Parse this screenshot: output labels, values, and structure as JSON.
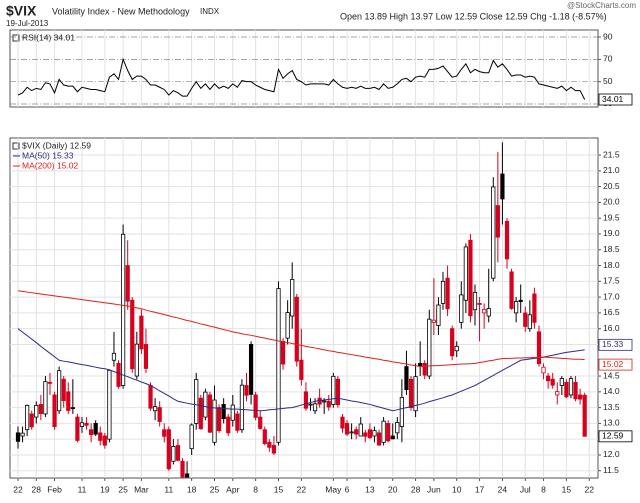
{
  "header": {
    "symbol": "$VIX",
    "name": "Volatility Index - New Methodology",
    "exchange": "INDX",
    "date": "19-Jul-2013",
    "quote": "Open 13.89  High 13.97  Low 12.59  Close 12.59  Chg -1.18 (-8.57%)",
    "credit": "@StockCharts.com"
  },
  "chart_data": [
    {
      "type": "line",
      "name": "RSI(14) 34.01",
      "color": "#000000",
      "end_label": "34.01",
      "ylim": [
        27.3,
        96.3
      ],
      "yticks": [
        90,
        70,
        50,
        30
      ],
      "grid": true,
      "values": [
        38,
        40,
        45,
        42,
        44,
        43,
        49,
        48,
        40,
        52,
        47,
        46,
        46,
        41,
        45,
        44,
        43,
        43,
        42,
        41,
        54,
        57,
        52,
        70,
        60,
        52,
        55,
        55,
        52,
        47,
        47,
        45,
        43,
        38,
        42,
        40,
        37,
        37,
        44,
        50,
        44,
        48,
        43,
        48,
        44,
        46,
        44,
        48,
        45,
        51,
        50,
        50,
        47,
        45,
        43,
        42,
        41,
        61,
        53,
        57,
        60,
        52,
        50,
        47,
        48,
        48,
        48,
        48,
        47,
        52,
        48,
        45,
        44,
        45,
        44,
        46,
        44,
        44,
        45,
        43,
        48,
        44,
        45,
        48,
        52,
        53,
        50,
        54,
        55,
        54,
        61,
        61,
        62,
        64,
        59,
        54,
        55,
        61,
        66,
        58,
        61,
        59,
        58,
        58,
        69,
        63,
        66,
        61,
        55,
        56,
        56,
        54,
        55,
        54,
        48,
        47,
        46,
        45,
        44,
        46,
        42,
        45,
        42,
        42,
        34.01,
        null
      ]
    },
    {
      "type": "candlestick",
      "name": "$VIX (Daily) 12.59",
      "end_label": "12.59",
      "up_color": "#000000",
      "down_color": "#d8001c",
      "ylim": [
        11.27,
        22.04
      ],
      "grid": true,
      "yticks": [
        11.5,
        {
          "value": 12,
          "label": "12.0"
        },
        12.5,
        {
          "value": 13,
          "label": "13.0"
        },
        13.5,
        {
          "value": 14,
          "label": "14.0"
        },
        14.5,
        15.5,
        {
          "value": 16,
          "label": "16.0"
        },
        16.5,
        {
          "value": 17,
          "label": "17.0"
        },
        17.5,
        {
          "value": 18,
          "label": "18.0"
        },
        18.5,
        {
          "value": 19,
          "label": "19.0"
        },
        19.5,
        {
          "value": 20,
          "label": "20.0"
        },
        20.5,
        {
          "value": 21,
          "label": "21.0"
        },
        21.5
      ],
      "categories": [
        "22",
        null,
        null,
        null,
        "28",
        null,
        null,
        null,
        "Feb",
        null,
        null,
        null,
        null,
        null,
        "11",
        null,
        null,
        null,
        null,
        "19",
        null,
        null,
        null,
        "25",
        null,
        null,
        null,
        "Mar",
        null,
        null,
        null,
        null,
        null,
        "11",
        null,
        null,
        null,
        null,
        "18",
        null,
        null,
        null,
        null,
        "25",
        null,
        null,
        null,
        "Apr",
        null,
        null,
        null,
        null,
        "8",
        null,
        null,
        null,
        null,
        "15",
        null,
        null,
        null,
        null,
        "22",
        null,
        null,
        null,
        null,
        null,
        null,
        "May",
        null,
        null,
        "6",
        null,
        null,
        null,
        null,
        "13",
        null,
        null,
        null,
        null,
        "20",
        null,
        null,
        null,
        null,
        "28",
        null,
        null,
        null,
        "Jun",
        null,
        null,
        null,
        null,
        "10",
        null,
        null,
        null,
        null,
        "17",
        null,
        null,
        null,
        null,
        "24",
        null,
        null,
        null,
        null,
        "Jul",
        null,
        null,
        null,
        "8",
        null,
        null,
        null,
        null,
        "15",
        null,
        null,
        null,
        null,
        "22"
      ],
      "open": [
        12.7,
        12.6,
        12.8,
        13.3,
        13.2,
        13.6,
        13.3,
        14.3,
        13.9,
        13.4,
        14.4,
        14.0,
        13.5,
        13.2,
        12.9,
        13.0,
        12.8,
        13.0,
        12.7,
        12.6,
        12.5,
        15.0,
        14.9,
        14.2,
        18.0,
        16.9,
        14.5,
        16.4,
        15.5,
        14.2,
        13.4,
        13.5,
        12.8,
        12.8,
        11.8,
        12.3,
        11.8,
        11.4,
        12.2,
        13.0,
        13.8,
        13.2,
        13.9,
        12.4,
        13.5,
        13.6,
        13.2,
        13.1,
        13.3,
        12.8,
        14.2,
        15.5,
        13.9,
        13.2,
        12.8,
        12.4,
        12.3,
        12.4,
        15.6,
        15.7,
        16.4,
        17.0,
        15.0,
        14.0,
        13.6,
        13.4,
        13.8,
        13.7,
        13.7,
        13.6,
        14.4,
        13.2,
        13.0,
        12.7,
        12.8,
        12.6,
        12.7,
        12.8,
        12.6,
        12.7,
        12.4,
        13.0,
        12.6,
        12.7,
        12.9,
        14.8,
        14.4,
        13.4,
        14.9,
        14.9,
        14.5,
        16.2,
        16.1,
        16.8,
        17.6,
        16.0,
        15.3,
        16.2,
        16.9,
        18.8,
        16.6,
        16.8,
        16.5,
        16.4,
        17.6,
        19.9,
        20.9,
        19.4,
        17.8,
        16.5,
        16.9,
        16.5,
        16.0,
        17.1,
        15.9,
        14.6,
        14.5,
        14.4,
        13.9,
        14.2,
        14.3,
        13.9,
        14.3,
        13.9,
        13.89,
        null
      ],
      "high": [
        12.9,
        12.9,
        13.6,
        13.4,
        13.7,
        13.9,
        14.5,
        14.6,
        14.0,
        14.8,
        14.5,
        14.3,
        14.4,
        13.3,
        13.2,
        13.2,
        13.0,
        13.1,
        12.9,
        12.7,
        14.7,
        15.9,
        15.0,
        19.3,
        18.8,
        17.0,
        15.9,
        16.6,
        16.0,
        14.3,
        13.8,
        13.7,
        13.0,
        12.9,
        12.5,
        12.5,
        11.9,
        11.8,
        13.0,
        14.6,
        13.9,
        14.1,
        14.0,
        14.2,
        13.6,
        13.8,
        13.3,
        13.9,
        13.4,
        14.4,
        14.6,
        15.6,
        14.0,
        13.4,
        12.9,
        12.5,
        12.6,
        17.5,
        15.7,
        16.9,
        18.1,
        17.1,
        16.0,
        14.3,
        13.8,
        13.8,
        14.1,
        13.8,
        13.9,
        14.6,
        14.5,
        13.3,
        13.1,
        13.0,
        12.9,
        13.2,
        12.8,
        13.0,
        12.9,
        12.8,
        13.2,
        13.1,
        13.0,
        13.2,
        14.4,
        15.3,
        14.5,
        14.9,
        15.6,
        15.0,
        16.6,
        17.6,
        17.0,
        17.8,
        18.0,
        16.1,
        15.6,
        17.5,
        18.7,
        19.0,
        17.4,
        17.0,
        16.8,
        17.9,
        20.8,
        21.6,
        21.9,
        19.5,
        17.9,
        17.0,
        17.4,
        16.7,
        16.9,
        17.3,
        16.1,
        14.9,
        14.6,
        14.6,
        14.3,
        14.5,
        14.4,
        14.5,
        14.5,
        14.1,
        13.97,
        null
      ],
      "low": [
        12.2,
        12.4,
        12.6,
        12.8,
        13.0,
        13.1,
        13.2,
        13.9,
        12.8,
        13.3,
        13.5,
        13.3,
        13.3,
        12.4,
        12.7,
        12.8,
        12.4,
        12.6,
        12.3,
        12.2,
        12.4,
        14.8,
        14.1,
        14.1,
        16.6,
        14.6,
        14.4,
        15.2,
        14.6,
        13.4,
        13.1,
        12.9,
        12.4,
        11.5,
        11.7,
        11.8,
        11.3,
        11.3,
        12.0,
        12.8,
        12.8,
        13.1,
        12.7,
        12.3,
        12.7,
        13.0,
        12.6,
        12.9,
        12.7,
        12.7,
        13.7,
        13.6,
        13.1,
        12.8,
        12.3,
        12.1,
        12.0,
        12.3,
        14.7,
        15.5,
        16.0,
        14.8,
        14.2,
        13.4,
        13.4,
        13.3,
        13.5,
        13.3,
        13.4,
        13.5,
        13.5,
        12.7,
        12.6,
        12.5,
        12.5,
        12.6,
        12.4,
        12.5,
        12.4,
        12.3,
        12.3,
        12.4,
        12.5,
        12.5,
        12.4,
        13.9,
        13.4,
        13.2,
        14.5,
        14.4,
        14.4,
        15.8,
        15.8,
        16.6,
        16.4,
        15.0,
        15.1,
        16.0,
        16.5,
        16.2,
        16.1,
        15.6,
        16.0,
        16.2,
        17.5,
        18.1,
        19.3,
        17.9,
        16.6,
        16.2,
        16.5,
        15.9,
        15.9,
        16.0,
        14.8,
        14.4,
        14.1,
        14.1,
        13.6,
        13.9,
        13.8,
        13.8,
        13.7,
        13.6,
        12.59,
        null
      ],
      "close": [
        12.43,
        12.69,
        13.57,
        12.89,
        13.57,
        13.31,
        14.32,
        14.28,
        12.9,
        14.67,
        13.72,
        13.41,
        13.5,
        12.46,
        13.02,
        12.94,
        12.64,
        12.66,
        12.46,
        12.31,
        14.68,
        15.22,
        14.17,
        18.99,
        16.87,
        14.73,
        15.51,
        15.36,
        14.74,
        13.48,
        13.53,
        13.06,
        12.59,
        11.56,
        12.27,
        11.83,
        11.3,
        11.3,
        12.95,
        14.39,
        12.83,
        13.99,
        12.72,
        13.74,
        12.77,
        13.15,
        12.7,
        13.58,
        12.78,
        14.21,
        13.89,
        13.92,
        13.19,
        12.84,
        12.36,
        12.24,
        12.06,
        17.27,
        14.88,
        16.51,
        17.56,
        14.97,
        14.39,
        13.48,
        13.61,
        13.62,
        13.61,
        13.71,
        13.52,
        14.49,
        13.59,
        12.85,
        12.66,
        12.73,
        12.66,
        12.98,
        12.59,
        12.55,
        12.77,
        12.31,
        13.07,
        12.45,
        12.51,
        13.03,
        13.82,
        14.07,
        13.5,
        14.48,
        14.83,
        14.53,
        16.3,
        16.27,
        16.75,
        17.5,
        16.63,
        15.14,
        15.44,
        17.07,
        18.59,
        16.41,
        17.15,
        16.8,
        16.61,
        16.64,
        20.49,
        18.9,
        20.11,
        18.21,
        16.64,
        16.86,
        16.86,
        16.07,
        16.44,
        16.2,
        14.89,
        14.78,
        14.35,
        14.21,
        14.01,
        14.42,
        13.84,
        14.42,
        13.78,
        13.77,
        12.59,
        null
      ],
      "series": [
        {
          "name": "MA(50) 15.33",
          "color": "#2b2b88",
          "end_label": "15.33",
          "values": [
            16.0,
            15.89,
            15.78,
            15.67,
            15.56,
            15.44,
            15.33,
            15.22,
            15.11,
            15.0,
            14.97,
            14.95,
            14.92,
            14.89,
            14.86,
            14.84,
            14.81,
            14.78,
            14.75,
            14.73,
            14.7,
            14.64,
            14.59,
            14.53,
            14.48,
            14.42,
            14.37,
            14.31,
            14.26,
            14.2,
            14.12,
            14.03,
            13.95,
            13.87,
            13.78,
            13.7,
            13.67,
            13.64,
            13.61,
            13.59,
            13.56,
            13.53,
            13.5,
            13.49,
            13.48,
            13.47,
            13.46,
            13.45,
            13.45,
            13.44,
            13.43,
            13.42,
            13.41,
            13.4,
            13.41,
            13.43,
            13.44,
            13.46,
            13.47,
            13.49,
            13.5,
            13.54,
            13.58,
            13.62,
            13.66,
            13.7,
            13.72,
            13.74,
            13.76,
            13.78,
            13.8,
            13.77,
            13.74,
            13.71,
            13.69,
            13.66,
            13.63,
            13.6,
            13.56,
            13.52,
            13.48,
            13.44,
            13.4,
            13.43,
            13.47,
            13.5,
            13.53,
            13.57,
            13.6,
            13.64,
            13.69,
            13.73,
            13.77,
            13.81,
            13.86,
            13.9,
            13.96,
            14.02,
            14.08,
            14.14,
            14.2,
            14.28,
            14.36,
            14.44,
            14.52,
            14.6,
            14.68,
            14.76,
            14.84,
            14.92,
            15.0,
            15.02,
            15.04,
            15.06,
            15.08,
            15.1,
            15.13,
            15.16,
            15.19,
            15.22,
            15.25,
            15.27,
            15.29,
            15.31,
            15.33,
            null
          ]
        },
        {
          "name": "MA(200) 15.02",
          "color": "#e0201c",
          "end_label": "15.02",
          "values": [
            17.2,
            17.18,
            17.16,
            17.14,
            17.12,
            17.1,
            17.08,
            17.06,
            17.04,
            17.02,
            17.0,
            16.98,
            16.96,
            16.94,
            16.92,
            16.9,
            16.88,
            16.86,
            16.84,
            16.82,
            16.8,
            16.78,
            16.76,
            16.74,
            16.72,
            16.7,
            16.66,
            16.63,
            16.59,
            16.55,
            16.52,
            16.48,
            16.45,
            16.41,
            16.37,
            16.34,
            16.3,
            16.26,
            16.23,
            16.19,
            16.15,
            16.12,
            16.08,
            16.05,
            16.01,
            15.97,
            15.94,
            15.9,
            15.87,
            15.84,
            15.81,
            15.79,
            15.76,
            15.73,
            15.7,
            15.67,
            15.64,
            15.61,
            15.59,
            15.56,
            15.53,
            15.5,
            15.47,
            15.44,
            15.41,
            15.39,
            15.36,
            15.33,
            15.3,
            15.28,
            15.25,
            15.23,
            15.2,
            15.18,
            15.15,
            15.13,
            15.1,
            15.08,
            15.05,
            15.03,
            15.0,
            14.98,
            14.95,
            14.93,
            14.9,
            14.88,
            14.85,
            14.83,
            14.8,
            14.81,
            14.82,
            14.83,
            14.83,
            14.84,
            14.85,
            14.86,
            14.87,
            14.88,
            14.88,
            14.89,
            14.9,
            14.93,
            14.95,
            14.98,
            15.0,
            15.03,
            15.05,
            15.06,
            15.06,
            15.07,
            15.07,
            15.08,
            15.08,
            15.09,
            15.09,
            15.1,
            15.09,
            15.08,
            15.07,
            15.06,
            15.05,
            15.04,
            15.03,
            15.03,
            15.02,
            null
          ]
        }
      ]
    }
  ]
}
